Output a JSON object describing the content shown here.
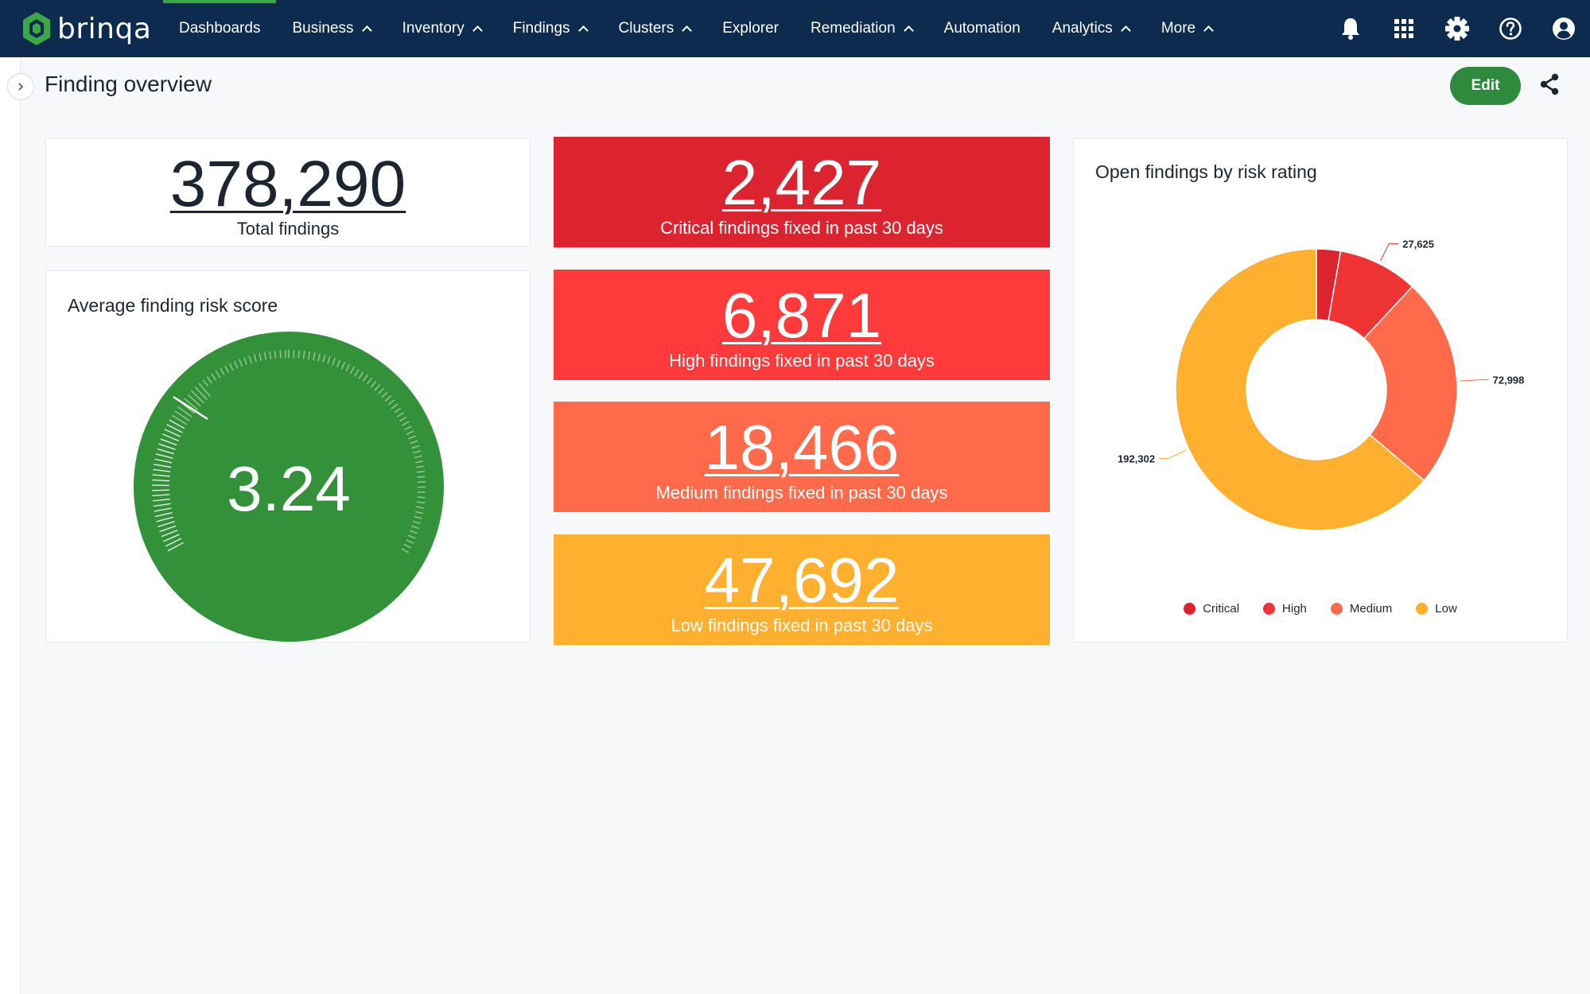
{
  "app": {
    "logo_text": "brinqa"
  },
  "nav": {
    "items": [
      {
        "label": "Dashboards",
        "chevron": false,
        "active": true
      },
      {
        "label": "Business",
        "chevron": true
      },
      {
        "label": "Inventory",
        "chevron": true
      },
      {
        "label": "Findings",
        "chevron": true
      },
      {
        "label": "Clusters",
        "chevron": true
      },
      {
        "label": "Explorer",
        "chevron": false
      },
      {
        "label": "Remediation",
        "chevron": true
      },
      {
        "label": "Automation",
        "chevron": false
      },
      {
        "label": "Analytics",
        "chevron": true
      },
      {
        "label": "More",
        "chevron": true
      }
    ],
    "icons": [
      "bell-icon",
      "apps-grid-icon",
      "gear-icon",
      "help-icon",
      "user-account-icon"
    ]
  },
  "page": {
    "title": "Finding overview",
    "edit_label": "Edit",
    "share_icon": "share-icon"
  },
  "total": {
    "value": "378,290",
    "label": "Total findings"
  },
  "gauge": {
    "title": "Average finding risk score",
    "value": "3.24",
    "color": "#339139"
  },
  "tiles": [
    {
      "value": "2,427",
      "label": "Critical findings fixed in past 30 days",
      "color": "#dc2430"
    },
    {
      "value": "6,871",
      "label": "High findings fixed in past 30 days",
      "color": "#ff3a3a"
    },
    {
      "value": "18,466",
      "label": "Medium findings fixed in past 30 days",
      "color": "#ff6a4a"
    },
    {
      "value": "47,692",
      "label": "Low findings fixed in past 30 days",
      "color": "#ffb02e"
    }
  ],
  "chart_data": {
    "type": "pie",
    "title": "Open findings by risk rating",
    "donut": true,
    "labels": [
      "Critical",
      "High",
      "Medium",
      "Low"
    ],
    "values": [
      8300,
      27625,
      72998,
      192302
    ],
    "data_labels": [
      "",
      "27,625",
      "72,998",
      "192,302"
    ],
    "colors": [
      "#dc2430",
      "#ee3333",
      "#ff6a4a",
      "#ffb02e"
    ],
    "legend": "bottom"
  }
}
